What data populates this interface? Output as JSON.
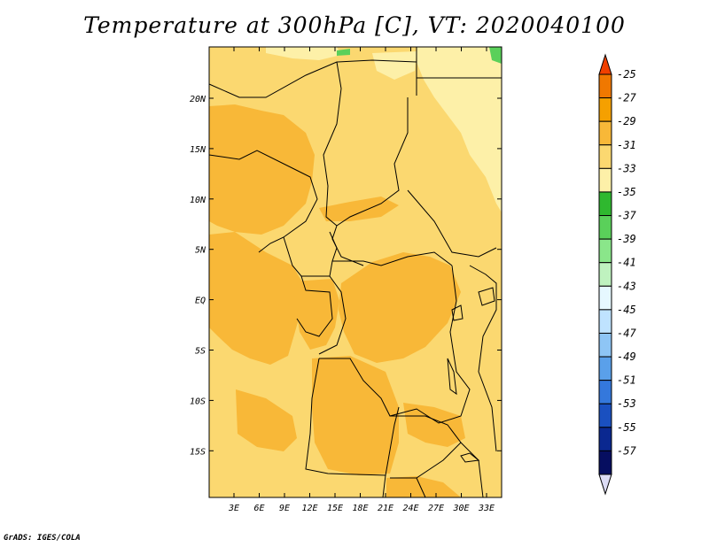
{
  "title": "Temperature at 300hPa [C], VT: 2020040100",
  "credit": "GrADS: IGES/COLA",
  "map": {
    "variable": "Temperature",
    "level": "300hPa",
    "units": "C",
    "valid_time": "2020040100",
    "lat_ticks": [
      "20N",
      "15N",
      "10N",
      "5N",
      "EQ",
      "5S",
      "10S",
      "15S"
    ],
    "lon_ticks": [
      "3E",
      "6E",
      "9E",
      "12E",
      "15E",
      "18E",
      "21E",
      "24E",
      "27E",
      "30E",
      "33E"
    ]
  },
  "colorbar": {
    "labels": [
      "-25",
      "-27",
      "-29",
      "-31",
      "-33",
      "-35",
      "-37",
      "-39",
      "-41",
      "-43",
      "-45",
      "-47",
      "-49",
      "-51",
      "-53",
      "-55",
      "-57"
    ],
    "colors": [
      "#f04000",
      "#f07800",
      "#f5a000",
      "#f8b838",
      "#fbd870",
      "#fdf0a8",
      "#2fb82f",
      "#5ad05a",
      "#8ae68a",
      "#bff2bf",
      "#e6f8ff",
      "#bfe3ff",
      "#8ec5f5",
      "#5aa0ea",
      "#3478dc",
      "#1a50c0",
      "#0a2890",
      "#060e60",
      "#dcdcf5"
    ]
  },
  "fill_colors": {
    "warm": "#f8b838",
    "mid": "#fbd870",
    "cool": "#fdf0a8",
    "green": "#5ad05a",
    "border": "#000000"
  }
}
